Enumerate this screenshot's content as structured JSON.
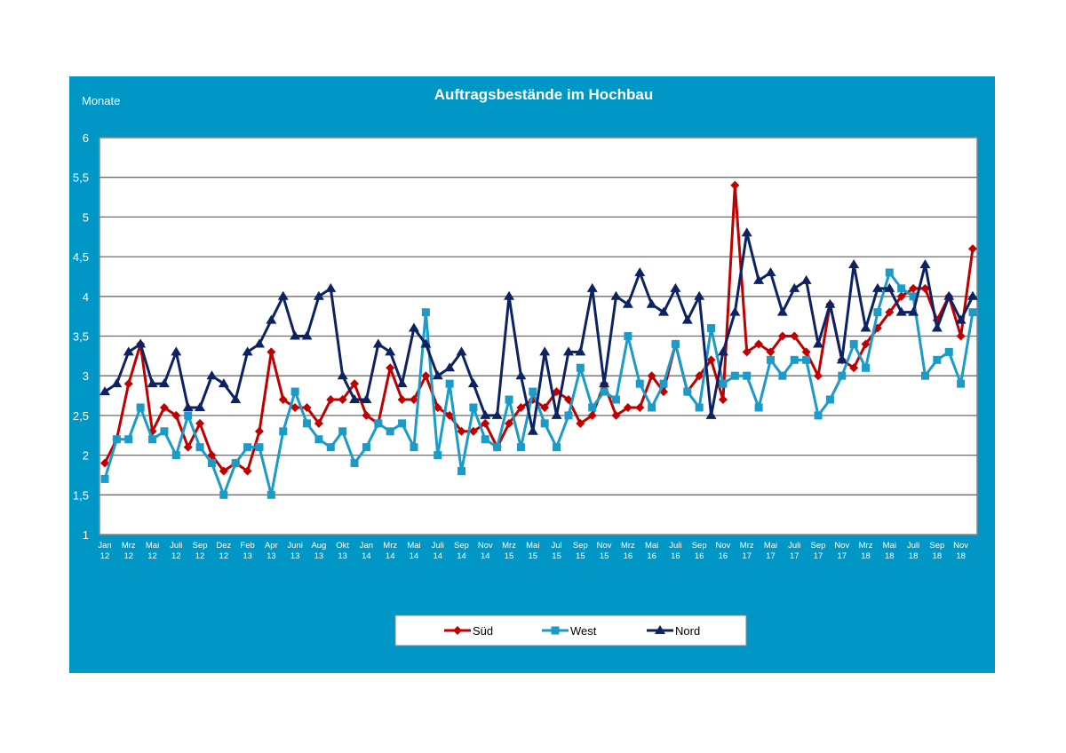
{
  "chart_data": {
    "type": "line",
    "title": "Auftragsbestände im Hochbau",
    "ylabel": "Monate",
    "xlabel": "",
    "ylim": [
      1,
      6
    ],
    "yticks": [
      "1",
      "1,5",
      "2",
      "2,5",
      "3",
      "3,5",
      "4",
      "4,5",
      "5",
      "5,5",
      "6"
    ],
    "ytick_values": [
      1,
      1.5,
      2,
      2.5,
      3,
      3.5,
      4,
      4.5,
      5,
      5.5,
      6
    ],
    "grid": true,
    "legend_position": "bottom",
    "xtick_every": 2,
    "xticks": [
      [
        "Jan",
        "12"
      ],
      [
        "Mrz",
        "12"
      ],
      [
        "Mai",
        "12"
      ],
      [
        "Juli",
        "12"
      ],
      [
        "Sep",
        "12"
      ],
      [
        "Dez",
        "12"
      ],
      [
        "Feb",
        "13"
      ],
      [
        "Apr",
        "13"
      ],
      [
        "Juni",
        "13"
      ],
      [
        "Aug",
        "13"
      ],
      [
        "Okt",
        "13"
      ],
      [
        "Jan",
        "14"
      ],
      [
        "Mrz",
        "14"
      ],
      [
        "Mai",
        "14"
      ],
      [
        "Juli",
        "14"
      ],
      [
        "Sep",
        "14"
      ],
      [
        "Nov",
        "14"
      ],
      [
        "Mrz",
        "15"
      ],
      [
        "Mai",
        "15"
      ],
      [
        "Jul",
        "15"
      ],
      [
        "Sep",
        "15"
      ],
      [
        "Nov",
        "15"
      ],
      [
        "Mrz",
        "16"
      ],
      [
        "Mai",
        "16"
      ],
      [
        "Juli",
        "16"
      ],
      [
        "Sep",
        "16"
      ],
      [
        "Nov",
        "16"
      ],
      [
        "Mrz",
        "17"
      ],
      [
        "Mai",
        "17"
      ],
      [
        "Juli",
        "17"
      ],
      [
        "Sep",
        "17"
      ],
      [
        "Nov",
        "17"
      ],
      [
        "Mrz",
        "18"
      ],
      [
        "Mai",
        "18"
      ],
      [
        "Juli",
        "18"
      ],
      [
        "Sep",
        "18"
      ],
      [
        "Nov",
        "18"
      ]
    ],
    "series": [
      {
        "name": "Süd",
        "color": "#c00000",
        "marker": "diamond",
        "values": [
          1.9,
          2.2,
          2.9,
          3.4,
          2.3,
          2.6,
          2.5,
          2.1,
          2.4,
          2.0,
          1.8,
          1.9,
          1.8,
          2.3,
          3.3,
          2.7,
          2.6,
          2.6,
          2.4,
          2.7,
          2.7,
          2.9,
          2.5,
          2.4,
          3.1,
          2.7,
          2.7,
          3.0,
          2.6,
          2.5,
          2.3,
          2.3,
          2.4,
          2.1,
          2.4,
          2.6,
          2.7,
          2.6,
          2.8,
          2.7,
          2.4,
          2.5,
          2.9,
          2.5,
          2.6,
          2.6,
          3.0,
          2.8,
          3.4,
          2.8,
          3.0,
          3.2,
          2.7,
          5.4,
          3.3,
          3.4,
          3.3,
          3.5,
          3.5,
          3.3,
          3.0,
          3.9,
          3.2,
          3.1,
          3.4,
          3.6,
          3.8,
          4.0,
          4.1,
          4.1,
          3.7,
          4.0,
          3.5,
          4.6
        ]
      },
      {
        "name": "West",
        "color": "#1a9bc8",
        "marker": "square",
        "values": [
          1.7,
          2.2,
          2.2,
          2.6,
          2.2,
          2.3,
          2.0,
          2.5,
          2.1,
          1.9,
          1.5,
          1.9,
          2.1,
          2.1,
          1.5,
          2.3,
          2.8,
          2.4,
          2.2,
          2.1,
          2.3,
          1.9,
          2.1,
          2.4,
          2.3,
          2.4,
          2.1,
          3.8,
          2.0,
          2.9,
          1.8,
          2.6,
          2.2,
          2.1,
          2.7,
          2.1,
          2.8,
          2.4,
          2.1,
          2.5,
          3.1,
          2.6,
          2.8,
          2.7,
          3.5,
          2.9,
          2.6,
          2.9,
          3.4,
          2.8,
          2.6,
          3.6,
          2.9,
          3.0,
          3.0,
          2.6,
          3.2,
          3.0,
          3.2,
          3.2,
          2.5,
          2.7,
          3.0,
          3.4,
          3.1,
          3.8,
          4.3,
          4.1,
          4.0,
          3.0,
          3.2,
          3.3,
          2.9,
          3.8
        ]
      },
      {
        "name": "Nord",
        "color": "#0d2262",
        "marker": "triangle",
        "values": [
          2.8,
          2.9,
          3.3,
          3.4,
          2.9,
          2.9,
          3.3,
          2.6,
          2.6,
          3.0,
          2.9,
          2.7,
          3.3,
          3.4,
          3.7,
          4.0,
          3.5,
          3.5,
          4.0,
          4.1,
          3.0,
          2.7,
          2.7,
          3.4,
          3.3,
          2.9,
          3.6,
          3.4,
          3.0,
          3.1,
          3.3,
          2.9,
          2.5,
          2.5,
          4.0,
          3.0,
          2.3,
          3.3,
          2.5,
          3.3,
          3.3,
          4.1,
          2.9,
          4.0,
          3.9,
          4.3,
          3.9,
          3.8,
          4.1,
          3.7,
          4.0,
          2.5,
          3.3,
          3.8,
          4.8,
          4.2,
          4.3,
          3.8,
          4.1,
          4.2,
          3.4,
          3.9,
          3.2,
          4.4,
          3.6,
          4.1,
          4.1,
          3.8,
          3.8,
          4.4,
          3.6,
          4.0,
          3.7,
          4.0
        ]
      }
    ]
  }
}
